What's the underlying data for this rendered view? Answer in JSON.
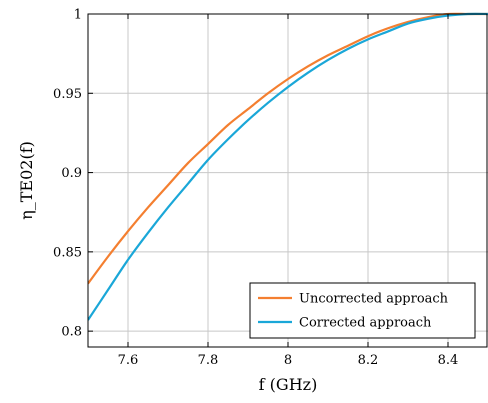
{
  "chart_data": {
    "type": "line",
    "title": "",
    "xlabel": "f (GHz)",
    "ylabel": "η_TE02(f)",
    "xlim": [
      7.5,
      8.5
    ],
    "ylim": [
      0.79,
      1.0
    ],
    "x_ticks": [
      7.6,
      7.8,
      8.0,
      8.2,
      8.4
    ],
    "x_tick_labels": [
      "7.6",
      "7.8",
      "8",
      "8.2",
      "8.4"
    ],
    "y_ticks": [
      0.8,
      0.85,
      0.9,
      0.95,
      1.0
    ],
    "y_tick_labels": [
      "0.8",
      "0.85",
      "0.9",
      "0.95",
      "1"
    ],
    "grid": true,
    "legend_position": "bottom-right",
    "series": [
      {
        "name": "Uncorrected approach",
        "color": "#f47f30",
        "x": [
          7.5,
          7.55,
          7.6,
          7.65,
          7.7,
          7.75,
          7.8,
          7.85,
          7.9,
          7.95,
          8.0,
          8.05,
          8.1,
          8.15,
          8.2,
          8.25,
          8.3,
          8.35,
          8.4,
          8.45,
          8.5
        ],
        "y": [
          0.83,
          0.847,
          0.863,
          0.878,
          0.892,
          0.906,
          0.918,
          0.93,
          0.94,
          0.95,
          0.959,
          0.967,
          0.974,
          0.98,
          0.986,
          0.991,
          0.995,
          0.998,
          1.0,
          1.0,
          1.0
        ]
      },
      {
        "name": "Corrected approach",
        "color": "#1aa7d8",
        "x": [
          7.5,
          7.55,
          7.6,
          7.65,
          7.7,
          7.75,
          7.8,
          7.85,
          7.9,
          7.95,
          8.0,
          8.05,
          8.1,
          8.15,
          8.2,
          8.25,
          8.3,
          8.35,
          8.4,
          8.45,
          8.5
        ],
        "y": [
          0.807,
          0.826,
          0.845,
          0.862,
          0.878,
          0.893,
          0.908,
          0.921,
          0.933,
          0.944,
          0.954,
          0.963,
          0.971,
          0.978,
          0.984,
          0.989,
          0.994,
          0.997,
          0.999,
          1.0,
          1.0
        ]
      }
    ]
  }
}
